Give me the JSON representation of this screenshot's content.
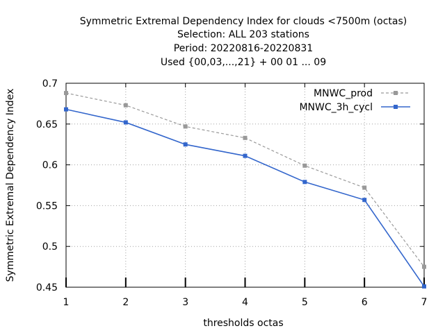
{
  "chart_data": {
    "type": "line",
    "title_lines": [
      "Symmetric Extremal Dependency Index  for clouds <7500m (octas)",
      "Selection: ALL    203 stations",
      "Period: 20220816-20220831",
      "Used {00,03,...,21} + 00 01 ... 09"
    ],
    "xlabel": "thresholds octas",
    "ylabel": "Symmetric Extremal Dependency Index",
    "x": [
      1,
      2,
      3,
      4,
      5,
      6,
      7
    ],
    "xlim": [
      1,
      7
    ],
    "ylim": [
      0.45,
      0.7
    ],
    "x_ticks": [
      "1",
      "2",
      "3",
      "4",
      "5",
      "6",
      "7"
    ],
    "y_ticks": [
      {
        "value": 0.45,
        "label": "0.45"
      },
      {
        "value": 0.5,
        "label": "0.5"
      },
      {
        "value": 0.55,
        "label": "0.55"
      },
      {
        "value": 0.6,
        "label": "0.6"
      },
      {
        "value": 0.65,
        "label": "0.65"
      },
      {
        "value": 0.7,
        "label": "0.7"
      }
    ],
    "grid": true,
    "legend_position": "top-right",
    "series": [
      {
        "name": "MNWC_prod",
        "values": [
          0.688,
          0.673,
          0.647,
          0.633,
          0.599,
          0.572,
          0.475
        ],
        "color": "#999999",
        "dashed": true
      },
      {
        "name": "MNWC_3h_cycl",
        "values": [
          0.668,
          0.652,
          0.625,
          0.611,
          0.579,
          0.557,
          0.451
        ],
        "color": "#3366cc",
        "dashed": false
      }
    ]
  }
}
